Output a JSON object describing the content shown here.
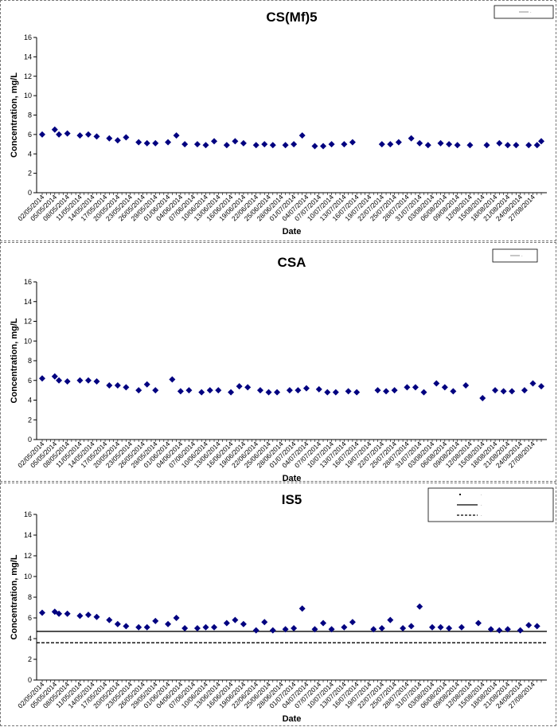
{
  "chart_data": [
    {
      "type": "scatter",
      "title": "CS(Mf)5",
      "xlabel": "Date",
      "ylabel": "Concentration, mg/L",
      "ylim": [
        0,
        16
      ],
      "yticks": [
        0,
        2,
        4,
        6,
        8,
        10,
        12,
        14,
        16
      ],
      "xlim": [
        "2014-05-02",
        "2014-08-29"
      ],
      "xtick_labels": [
        "02/05/2014",
        "05/05/2014",
        "08/05/2014",
        "11/05/2014",
        "14/05/2014",
        "17/05/2014",
        "20/05/2014",
        "23/05/2014",
        "26/05/2014",
        "29/05/2014",
        "01/06/2014",
        "04/06/2014",
        "07/06/2014",
        "10/06/2014",
        "13/06/2014",
        "16/06/2014",
        "19/06/2014",
        "22/06/2014",
        "25/06/2014",
        "28/06/2014",
        "01/07/2014",
        "04/07/2014",
        "07/07/2014",
        "10/07/2014",
        "13/07/2014",
        "16/07/2014",
        "19/07/2014",
        "22/07/2014",
        "25/07/2014",
        "28/07/2014",
        "31/07/2014",
        "03/08/2014",
        "06/08/2014",
        "09/08/2014",
        "12/08/2014",
        "15/08/2014",
        "18/08/2014",
        "21/08/2014",
        "24/08/2014",
        "27/08/2014"
      ],
      "grid": false,
      "legend": {
        "placement": "top-right",
        "entries": [
          "-"
        ]
      },
      "marker_color": "#000080",
      "series": [
        {
          "points": [
            [
              "2014-05-02",
              6.0
            ],
            [
              "2014-05-05",
              6.5
            ],
            [
              "2014-05-06",
              6.0
            ],
            [
              "2014-05-08",
              6.1
            ],
            [
              "2014-05-11",
              5.9
            ],
            [
              "2014-05-13",
              6.0
            ],
            [
              "2014-05-15",
              5.8
            ],
            [
              "2014-05-18",
              5.6
            ],
            [
              "2014-05-20",
              5.4
            ],
            [
              "2014-05-22",
              5.7
            ],
            [
              "2014-05-25",
              5.2
            ],
            [
              "2014-05-27",
              5.1
            ],
            [
              "2014-05-29",
              5.1
            ],
            [
              "2014-06-01",
              5.2
            ],
            [
              "2014-06-03",
              5.9
            ],
            [
              "2014-06-05",
              5.0
            ],
            [
              "2014-06-08",
              5.0
            ],
            [
              "2014-06-10",
              4.9
            ],
            [
              "2014-06-12",
              5.3
            ],
            [
              "2014-06-15",
              4.9
            ],
            [
              "2014-06-17",
              5.3
            ],
            [
              "2014-06-19",
              5.1
            ],
            [
              "2014-06-22",
              4.9
            ],
            [
              "2014-06-24",
              5.0
            ],
            [
              "2014-06-26",
              4.9
            ],
            [
              "2014-06-29",
              4.9
            ],
            [
              "2014-07-01",
              5.0
            ],
            [
              "2014-07-03",
              5.9
            ],
            [
              "2014-07-06",
              4.8
            ],
            [
              "2014-07-08",
              4.8
            ],
            [
              "2014-07-10",
              5.0
            ],
            [
              "2014-07-13",
              5.0
            ],
            [
              "2014-07-15",
              5.2
            ],
            [
              "2014-07-22",
              5.0
            ],
            [
              "2014-07-24",
              5.0
            ],
            [
              "2014-07-26",
              5.2
            ],
            [
              "2014-07-29",
              5.6
            ],
            [
              "2014-07-31",
              5.1
            ],
            [
              "2014-08-02",
              4.9
            ],
            [
              "2014-08-05",
              5.1
            ],
            [
              "2014-08-07",
              5.0
            ],
            [
              "2014-08-09",
              4.9
            ],
            [
              "2014-08-12",
              4.9
            ],
            [
              "2014-08-16",
              4.9
            ],
            [
              "2014-08-19",
              5.1
            ],
            [
              "2014-08-21",
              4.9
            ],
            [
              "2014-08-23",
              4.9
            ],
            [
              "2014-08-26",
              4.9
            ],
            [
              "2014-08-28",
              4.9
            ],
            [
              "2014-08-29",
              5.3
            ]
          ]
        }
      ]
    },
    {
      "type": "scatter",
      "title": "CSA",
      "xlabel": "Date",
      "ylabel": "Concentration, mg/L",
      "ylim": [
        0,
        16
      ],
      "yticks": [
        0,
        2,
        4,
        6,
        8,
        10,
        12,
        14,
        16
      ],
      "xlim": [
        "2014-05-02",
        "2014-08-29"
      ],
      "xtick_labels": [
        "02/05/2014",
        "05/05/2014",
        "08/05/2014",
        "11/05/2014",
        "14/05/2014",
        "17/05/2014",
        "20/05/2014",
        "23/05/2014",
        "26/05/2014",
        "29/05/2014",
        "01/06/2014",
        "04/06/2014",
        "07/06/2014",
        "10/06/2014",
        "13/06/2014",
        "16/06/2014",
        "19/06/2014",
        "22/06/2014",
        "25/06/2014",
        "28/06/2014",
        "01/07/2014",
        "04/07/2014",
        "07/07/2014",
        "10/07/2014",
        "13/07/2014",
        "16/07/2014",
        "19/07/2014",
        "22/07/2014",
        "25/07/2014",
        "28/07/2014",
        "31/07/2014",
        "03/08/2014",
        "06/08/2014",
        "09/08/2014",
        "12/08/2014",
        "15/08/2014",
        "18/08/2014",
        "21/08/2014",
        "24/08/2014",
        "27/08/2014"
      ],
      "grid": false,
      "legend": {
        "placement": "top-right",
        "entries": [
          "-"
        ]
      },
      "marker_color": "#000080",
      "series": [
        {
          "points": [
            [
              "2014-05-02",
              6.2
            ],
            [
              "2014-05-05",
              6.4
            ],
            [
              "2014-05-06",
              6.0
            ],
            [
              "2014-05-08",
              5.9
            ],
            [
              "2014-05-11",
              6.0
            ],
            [
              "2014-05-13",
              6.0
            ],
            [
              "2014-05-15",
              5.9
            ],
            [
              "2014-05-18",
              5.5
            ],
            [
              "2014-05-20",
              5.5
            ],
            [
              "2014-05-22",
              5.3
            ],
            [
              "2014-05-25",
              5.0
            ],
            [
              "2014-05-27",
              5.6
            ],
            [
              "2014-05-29",
              5.0
            ],
            [
              "2014-06-02",
              6.1
            ],
            [
              "2014-06-04",
              4.9
            ],
            [
              "2014-06-06",
              5.0
            ],
            [
              "2014-06-09",
              4.8
            ],
            [
              "2014-06-11",
              5.0
            ],
            [
              "2014-06-13",
              5.0
            ],
            [
              "2014-06-16",
              4.8
            ],
            [
              "2014-06-18",
              5.4
            ],
            [
              "2014-06-20",
              5.3
            ],
            [
              "2014-06-23",
              5.0
            ],
            [
              "2014-06-25",
              4.8
            ],
            [
              "2014-06-27",
              4.8
            ],
            [
              "2014-06-30",
              5.0
            ],
            [
              "2014-07-02",
              5.0
            ],
            [
              "2014-07-04",
              5.2
            ],
            [
              "2014-07-07",
              5.1
            ],
            [
              "2014-07-09",
              4.8
            ],
            [
              "2014-07-11",
              4.8
            ],
            [
              "2014-07-14",
              4.9
            ],
            [
              "2014-07-16",
              4.8
            ],
            [
              "2014-07-21",
              5.0
            ],
            [
              "2014-07-23",
              4.9
            ],
            [
              "2014-07-25",
              5.0
            ],
            [
              "2014-07-28",
              5.3
            ],
            [
              "2014-07-30",
              5.3
            ],
            [
              "2014-08-01",
              4.8
            ],
            [
              "2014-08-04",
              5.7
            ],
            [
              "2014-08-06",
              5.3
            ],
            [
              "2014-08-08",
              4.9
            ],
            [
              "2014-08-11",
              5.5
            ],
            [
              "2014-08-15",
              4.2
            ],
            [
              "2014-08-18",
              5.0
            ],
            [
              "2014-08-20",
              4.9
            ],
            [
              "2014-08-22",
              4.9
            ],
            [
              "2014-08-25",
              5.0
            ],
            [
              "2014-08-27",
              5.7
            ],
            [
              "2014-08-29",
              5.4
            ]
          ]
        }
      ]
    },
    {
      "type": "scatter",
      "title": "IS5",
      "xlabel": "Date",
      "ylabel": "Concentration, mg/L",
      "ylim": [
        0,
        16
      ],
      "yticks": [
        0,
        2,
        4,
        6,
        8,
        10,
        12,
        14,
        16
      ],
      "xlim": [
        "2014-05-02",
        "2014-08-29"
      ],
      "xtick_labels": [
        "02/05/2014",
        "05/05/2014",
        "08/05/2014",
        "11/05/2014",
        "14/05/2014",
        "17/05/2014",
        "20/05/2014",
        "23/05/2014",
        "26/05/2014",
        "29/05/2014",
        "01/06/2014",
        "04/06/2014",
        "07/06/2014",
        "10/06/2014",
        "13/06/2014",
        "16/06/2014",
        "19/06/2014",
        "22/06/2014",
        "25/06/2014",
        "28/06/2014",
        "01/07/2014",
        "04/07/2014",
        "07/07/2014",
        "10/07/2014",
        "13/07/2014",
        "16/07/2014",
        "19/07/2014",
        "22/07/2014",
        "25/07/2014",
        "28/07/2014",
        "31/07/2014",
        "03/08/2014",
        "06/08/2014",
        "09/08/2014",
        "12/08/2014",
        "15/08/2014",
        "18/08/2014",
        "21/08/2014",
        "24/08/2014",
        "27/08/2014"
      ],
      "grid": false,
      "legend": {
        "placement": "top-right",
        "entries": [
          "-",
          "-",
          "-"
        ]
      },
      "marker_color": "#000080",
      "reference_lines": [
        {
          "y": 4.7,
          "style": "solid"
        },
        {
          "y": 3.6,
          "style": "dashed"
        }
      ],
      "series": [
        {
          "points": [
            [
              "2014-05-02",
              6.5
            ],
            [
              "2014-05-05",
              6.6
            ],
            [
              "2014-05-06",
              6.4
            ],
            [
              "2014-05-08",
              6.4
            ],
            [
              "2014-05-11",
              6.2
            ],
            [
              "2014-05-13",
              6.3
            ],
            [
              "2014-05-15",
              6.1
            ],
            [
              "2014-05-18",
              5.8
            ],
            [
              "2014-05-20",
              5.4
            ],
            [
              "2014-05-22",
              5.2
            ],
            [
              "2014-05-25",
              5.1
            ],
            [
              "2014-05-27",
              5.1
            ],
            [
              "2014-05-29",
              5.7
            ],
            [
              "2014-06-01",
              5.4
            ],
            [
              "2014-06-03",
              6.0
            ],
            [
              "2014-06-05",
              5.0
            ],
            [
              "2014-06-08",
              5.0
            ],
            [
              "2014-06-10",
              5.1
            ],
            [
              "2014-06-12",
              5.1
            ],
            [
              "2014-06-15",
              5.5
            ],
            [
              "2014-06-17",
              5.8
            ],
            [
              "2014-06-19",
              5.4
            ],
            [
              "2014-06-22",
              4.8
            ],
            [
              "2014-06-24",
              5.6
            ],
            [
              "2014-06-26",
              4.8
            ],
            [
              "2014-06-29",
              4.9
            ],
            [
              "2014-07-01",
              5.0
            ],
            [
              "2014-07-03",
              6.9
            ],
            [
              "2014-07-06",
              4.9
            ],
            [
              "2014-07-08",
              5.5
            ],
            [
              "2014-07-10",
              4.9
            ],
            [
              "2014-07-13",
              5.1
            ],
            [
              "2014-07-15",
              5.6
            ],
            [
              "2014-07-20",
              4.9
            ],
            [
              "2014-07-22",
              5.0
            ],
            [
              "2014-07-24",
              5.8
            ],
            [
              "2014-07-27",
              5.0
            ],
            [
              "2014-07-29",
              5.2
            ],
            [
              "2014-07-31",
              7.1
            ],
            [
              "2014-08-03",
              5.1
            ],
            [
              "2014-08-05",
              5.1
            ],
            [
              "2014-08-07",
              5.0
            ],
            [
              "2014-08-10",
              5.1
            ],
            [
              "2014-08-14",
              5.5
            ],
            [
              "2014-08-17",
              4.9
            ],
            [
              "2014-08-19",
              4.8
            ],
            [
              "2014-08-21",
              4.9
            ],
            [
              "2014-08-24",
              4.8
            ],
            [
              "2014-08-26",
              5.3
            ],
            [
              "2014-08-28",
              5.2
            ]
          ]
        }
      ]
    }
  ]
}
